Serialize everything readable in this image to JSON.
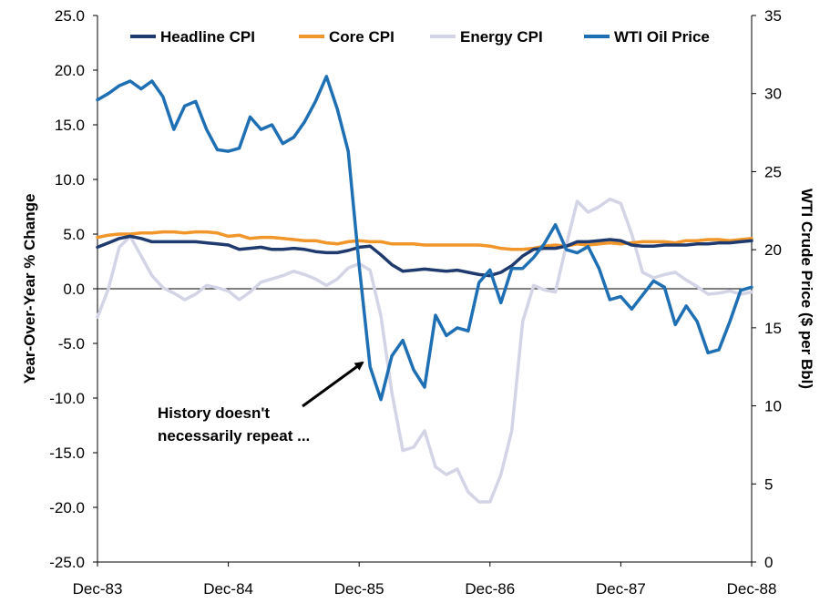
{
  "chart_data": {
    "type": "line",
    "x": [
      "Dec-83",
      "Jan-84",
      "Feb-84",
      "Mar-84",
      "Apr-84",
      "May-84",
      "Jun-84",
      "Jul-84",
      "Aug-84",
      "Sep-84",
      "Oct-84",
      "Nov-84",
      "Dec-84",
      "Jan-85",
      "Feb-85",
      "Mar-85",
      "Apr-85",
      "May-85",
      "Jun-85",
      "Jul-85",
      "Aug-85",
      "Sep-85",
      "Oct-85",
      "Nov-85",
      "Dec-85",
      "Jan-86",
      "Feb-86",
      "Mar-86",
      "Apr-86",
      "May-86",
      "Jun-86",
      "Jul-86",
      "Aug-86",
      "Sep-86",
      "Oct-86",
      "Nov-86",
      "Dec-86",
      "Jan-87",
      "Feb-87",
      "Mar-87",
      "Apr-87",
      "May-87",
      "Jun-87",
      "Jul-87",
      "Aug-87",
      "Sep-87",
      "Oct-87",
      "Nov-87",
      "Dec-87",
      "Jan-88",
      "Feb-88",
      "Mar-88",
      "Apr-88",
      "May-88",
      "Jun-88",
      "Jul-88",
      "Aug-88",
      "Sep-88",
      "Oct-88",
      "Nov-88",
      "Dec-88"
    ],
    "x_tick_labels": [
      "Dec-83",
      "Dec-84",
      "Dec-85",
      "Dec-86",
      "Dec-87",
      "Dec-88"
    ],
    "left_axis": {
      "label": "Year-Over-Year % Change",
      "ylim": [
        -25,
        25
      ],
      "ticks": [
        "25.0",
        "20.0",
        "15.0",
        "10.0",
        "5.0",
        "0.0",
        "-5.0",
        "-10.0",
        "-15.0",
        "-20.0",
        "-25.0"
      ]
    },
    "right_axis": {
      "label": "WTI Crude Price ($ per Bbl)",
      "ylim": [
        0,
        35
      ],
      "ticks": [
        "35",
        "30",
        "25",
        "20",
        "15",
        "10",
        "5",
        "0"
      ]
    },
    "legend_placement": "top",
    "series": [
      {
        "name": "Headline CPI",
        "axis": "left",
        "color": "#1f3a6e",
        "values": [
          3.8,
          4.2,
          4.6,
          4.8,
          4.6,
          4.3,
          4.3,
          4.3,
          4.3,
          4.3,
          4.2,
          4.1,
          4.0,
          3.6,
          3.7,
          3.8,
          3.6,
          3.6,
          3.7,
          3.6,
          3.4,
          3.3,
          3.3,
          3.5,
          3.8,
          3.9,
          3.1,
          2.2,
          1.6,
          1.7,
          1.8,
          1.7,
          1.6,
          1.7,
          1.5,
          1.3,
          1.2,
          1.5,
          2.1,
          3.0,
          3.6,
          3.7,
          3.7,
          3.9,
          4.3,
          4.3,
          4.4,
          4.5,
          4.4,
          4.0,
          3.9,
          3.9,
          4.0,
          4.0,
          4.0,
          4.1,
          4.1,
          4.2,
          4.2,
          4.3,
          4.4
        ]
      },
      {
        "name": "Core CPI",
        "axis": "left",
        "color": "#f0962a",
        "values": [
          4.7,
          4.9,
          5.0,
          5.0,
          5.1,
          5.1,
          5.2,
          5.2,
          5.1,
          5.2,
          5.2,
          5.1,
          4.8,
          4.9,
          4.6,
          4.7,
          4.7,
          4.6,
          4.5,
          4.4,
          4.4,
          4.2,
          4.1,
          4.3,
          4.4,
          4.3,
          4.3,
          4.1,
          4.1,
          4.1,
          4.0,
          4.0,
          4.0,
          4.0,
          4.0,
          4.0,
          3.9,
          3.7,
          3.6,
          3.6,
          3.7,
          3.9,
          4.0,
          3.9,
          4.1,
          4.0,
          4.1,
          4.2,
          4.1,
          4.2,
          4.3,
          4.3,
          4.3,
          4.2,
          4.4,
          4.4,
          4.5,
          4.5,
          4.4,
          4.5,
          4.6
        ]
      },
      {
        "name": "Energy CPI",
        "axis": "left",
        "color": "#d3d4e6",
        "values": [
          -2.6,
          0.0,
          3.8,
          4.8,
          3.0,
          1.2,
          0.1,
          -0.4,
          -1.0,
          -0.5,
          0.3,
          0.1,
          -0.2,
          -1.0,
          -0.3,
          0.6,
          0.9,
          1.2,
          1.6,
          1.3,
          0.9,
          0.3,
          0.9,
          1.9,
          2.3,
          1.7,
          -2.5,
          -9.5,
          -14.8,
          -14.5,
          -13.0,
          -16.3,
          -17.0,
          -16.5,
          -18.6,
          -19.5,
          -19.5,
          -17.0,
          -13.0,
          -3.0,
          0.3,
          -0.1,
          -0.3,
          4.0,
          8.0,
          7.0,
          7.5,
          8.2,
          7.8,
          5.0,
          1.5,
          1.0,
          1.3,
          1.5,
          0.8,
          0.2,
          -0.5,
          -0.4,
          -0.2,
          -0.5,
          -0.3
        ]
      },
      {
        "name": "WTI Oil Price",
        "axis": "right",
        "color": "#1f6fb5",
        "values": [
          29.6,
          30.0,
          30.5,
          30.8,
          30.3,
          30.8,
          29.8,
          27.7,
          29.2,
          29.5,
          27.7,
          26.4,
          26.3,
          26.5,
          28.5,
          27.7,
          28.0,
          26.8,
          27.2,
          28.2,
          29.5,
          31.1,
          29.0,
          26.3,
          19.0,
          12.5,
          10.4,
          13.2,
          14.2,
          12.3,
          11.2,
          15.8,
          14.5,
          15.0,
          14.8,
          17.9,
          18.7,
          16.6,
          18.8,
          18.8,
          19.5,
          20.4,
          21.6,
          20.0,
          19.8,
          20.2,
          18.8,
          16.8,
          17.0,
          16.2,
          17.1,
          18.0,
          17.6,
          15.2,
          16.4,
          15.4,
          13.4,
          13.6,
          15.4,
          17.4,
          17.6
        ]
      }
    ]
  },
  "annotation": {
    "line1": "History doesn't",
    "line2": "necessarily repeat ..."
  }
}
